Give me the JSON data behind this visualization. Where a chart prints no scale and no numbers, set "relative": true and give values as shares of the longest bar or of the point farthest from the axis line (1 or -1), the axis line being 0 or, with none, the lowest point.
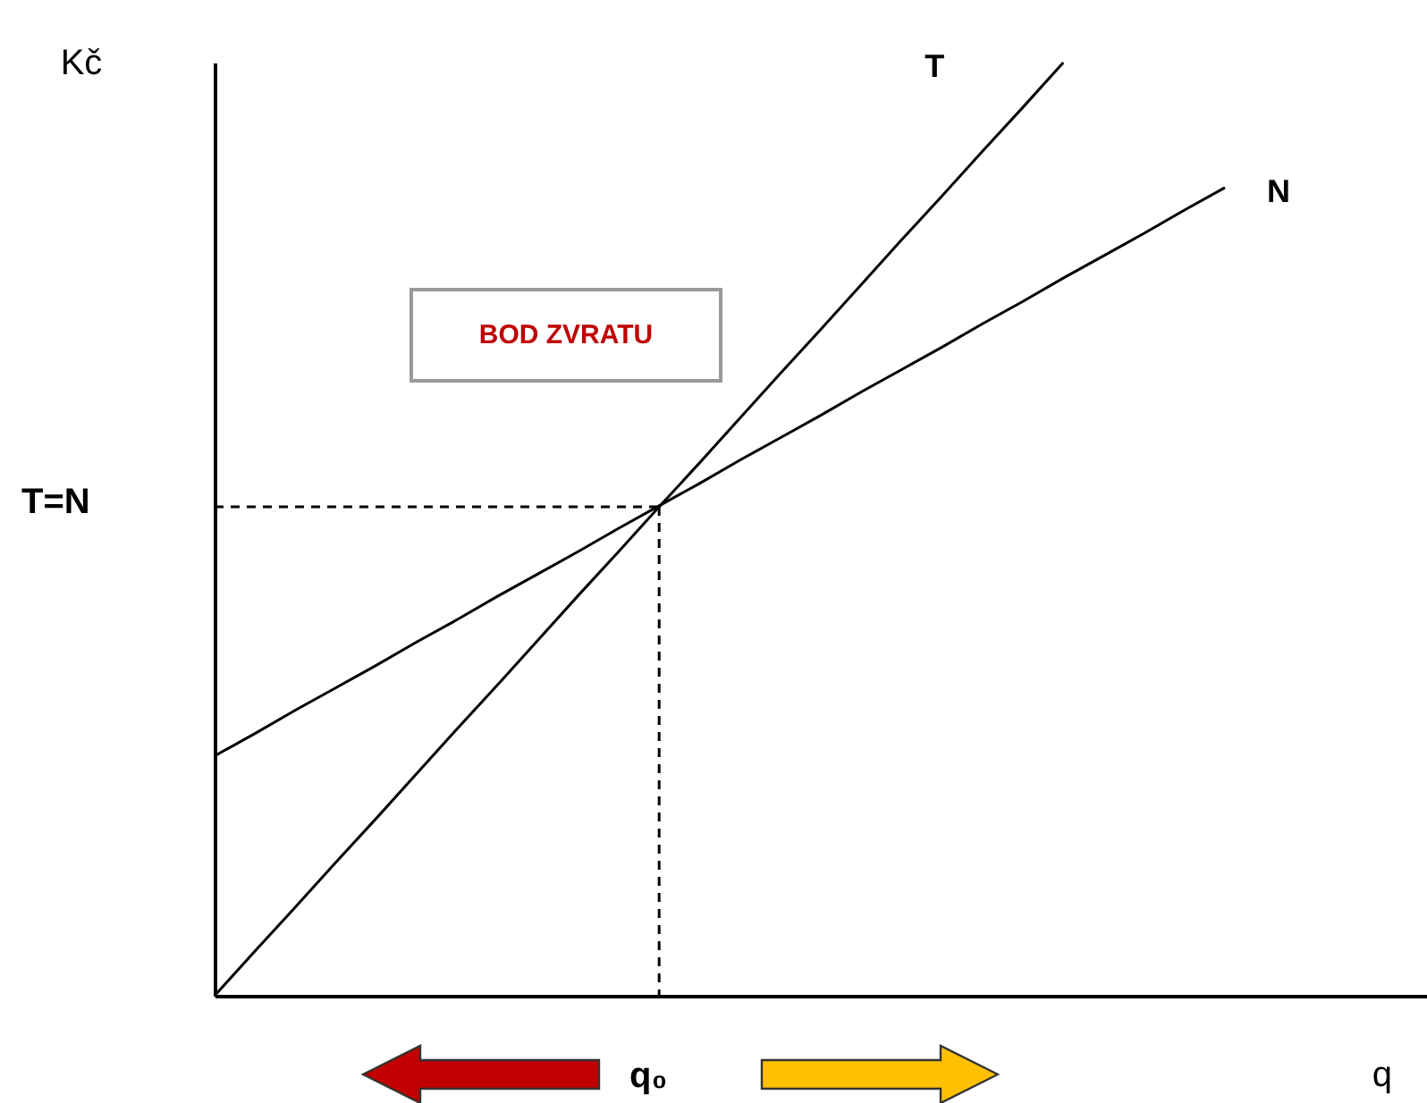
{
  "chart_data": {
    "type": "line",
    "relative": true,
    "xlabel": "q",
    "ylabel": "Kč",
    "categories": [
      null,
      null,
      null,
      null,
      null,
      null,
      null,
      null,
      null,
      null,
      null,
      null,
      null,
      null,
      null,
      null,
      null,
      null,
      null,
      null,
      null,
      null,
      null,
      null,
      null,
      null,
      null,
      null,
      null,
      null,
      null
    ],
    "annotations": [
      "BOD ZVRATU",
      "T=N",
      "q₀"
    ],
    "series": [
      {
        "name": "T",
        "color": "#000000",
        "values": [
          0,
          0.048,
          0.095,
          0.143,
          0.19,
          0.238,
          0.286,
          0.333,
          0.381,
          0.429,
          0.476,
          0.524,
          0.571,
          0.619,
          0.667,
          0.714,
          0.762,
          0.81,
          0.857,
          0.905,
          0.952,
          1,
          null,
          null,
          null,
          null,
          null,
          null,
          null,
          null,
          null
        ]
      },
      {
        "name": "N",
        "color": "#000000",
        "values": [
          0.257,
          0.281,
          0.306,
          0.33,
          0.354,
          0.379,
          0.403,
          0.428,
          0.452,
          0.476,
          0.501,
          0.525,
          0.549,
          0.574,
          0.598,
          0.622,
          0.647,
          0.671,
          0.695,
          0.72,
          0.744,
          0.769,
          0.793,
          0.817,
          0.842,
          0.866,
          null,
          null,
          null,
          null,
          null
        ]
      },
      {
        "color": "#000000",
        "line_style": "dashed",
        "values": [
          0.524,
          0.524,
          0.524,
          0.524,
          0.524,
          0.524,
          0.524,
          0.524,
          0.524,
          0.524,
          0.524,
          0.524,
          null,
          null,
          null,
          null,
          null,
          null,
          null,
          null,
          null,
          null,
          null,
          null,
          null,
          null,
          null,
          null,
          null,
          null,
          null
        ]
      }
    ]
  }
}
